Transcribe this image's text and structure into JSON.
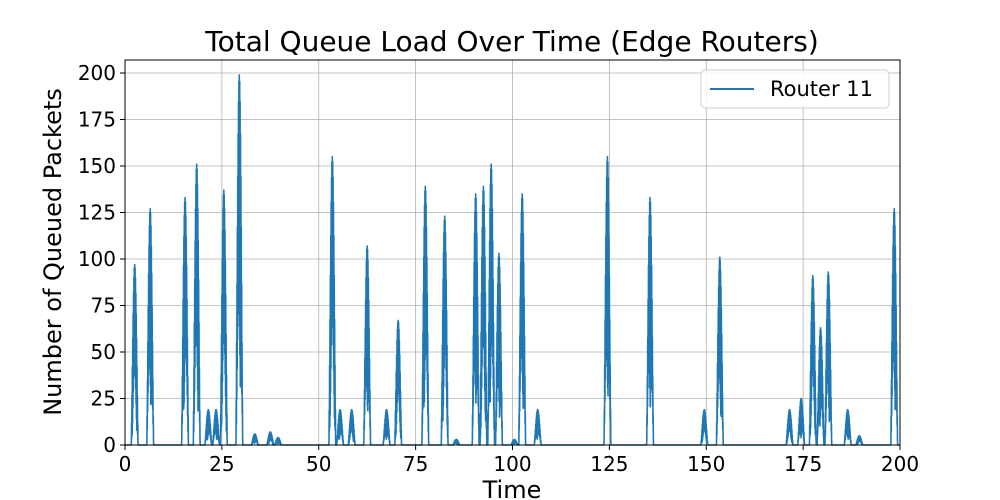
{
  "chart_data": {
    "type": "line",
    "title": "Total Queue Load Over Time (Edge Routers)",
    "xlabel": "Time",
    "ylabel": "Number of Queued Packets",
    "xlim": [
      0,
      200
    ],
    "ylim": [
      0,
      207
    ],
    "xticks": [
      "0",
      "25",
      "50",
      "75",
      "100",
      "125",
      "150",
      "175",
      "200"
    ],
    "yticks": [
      "0",
      "25",
      "50",
      "75",
      "100",
      "125",
      "150",
      "175",
      "200"
    ],
    "grid": true,
    "legend_position": "top-right",
    "series": [
      {
        "name": "Router 11",
        "color": "#1f77b4",
        "bursts": [
          [
            2.5,
            97
          ],
          [
            6.5,
            127
          ],
          [
            15.5,
            133
          ],
          [
            18.5,
            151
          ],
          [
            21.5,
            19
          ],
          [
            23.5,
            19
          ],
          [
            25.5,
            137
          ],
          [
            29.5,
            199
          ],
          [
            33.5,
            6
          ],
          [
            37.5,
            7
          ],
          [
            39.5,
            4
          ],
          [
            53.5,
            155
          ],
          [
            55.5,
            19
          ],
          [
            58.5,
            19
          ],
          [
            62.5,
            107
          ],
          [
            67.5,
            19
          ],
          [
            70.5,
            67
          ],
          [
            77.5,
            139
          ],
          [
            82.5,
            123
          ],
          [
            85.5,
            3
          ],
          [
            90.5,
            135
          ],
          [
            92.5,
            139
          ],
          [
            94.5,
            151
          ],
          [
            96.5,
            103
          ],
          [
            100.5,
            3
          ],
          [
            102.5,
            135
          ],
          [
            106.5,
            19
          ],
          [
            124.5,
            155
          ],
          [
            135.5,
            133
          ],
          [
            149.5,
            19
          ],
          [
            153.5,
            101
          ],
          [
            171.5,
            19
          ],
          [
            174.5,
            25
          ],
          [
            177.5,
            91
          ],
          [
            179.5,
            63
          ],
          [
            181.5,
            93
          ],
          [
            186.5,
            19
          ],
          [
            189.5,
            5
          ],
          [
            198.5,
            127
          ]
        ]
      }
    ]
  }
}
